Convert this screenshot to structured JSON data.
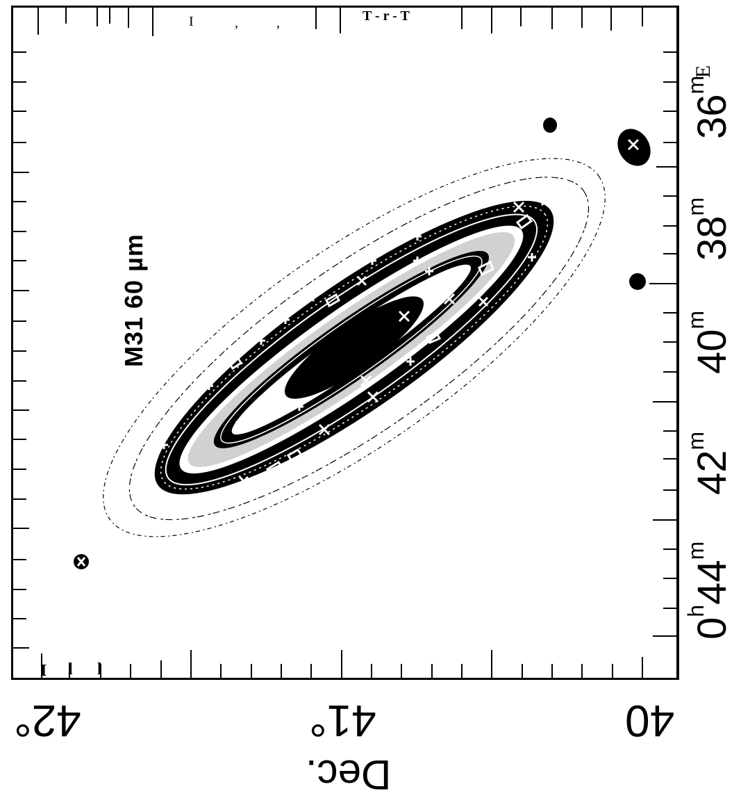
{
  "figure": {
    "object_label": "M31  60 µm",
    "east_marker": "E",
    "top_axis_artifacts": [
      "I",
      ",",
      ",",
      "T - r - T"
    ],
    "bottom_axis_artifacts": [
      "I",
      "l",
      "l"
    ]
  },
  "ra_axis": {
    "labels": [
      {
        "main": "0",
        "sup": "h",
        "rest": "44",
        "sup2": "m"
      },
      {
        "main": "42",
        "sup": "m"
      },
      {
        "main": "40",
        "sup": "m"
      },
      {
        "main": "38",
        "sup": "m"
      },
      {
        "main": "36",
        "sup": "m"
      }
    ]
  },
  "dec_axis": {
    "title": "Dec.",
    "labels": [
      "42°",
      "41°",
      "40"
    ]
  },
  "colors": {
    "ink": "#000000",
    "paper": "#ffffff"
  }
}
